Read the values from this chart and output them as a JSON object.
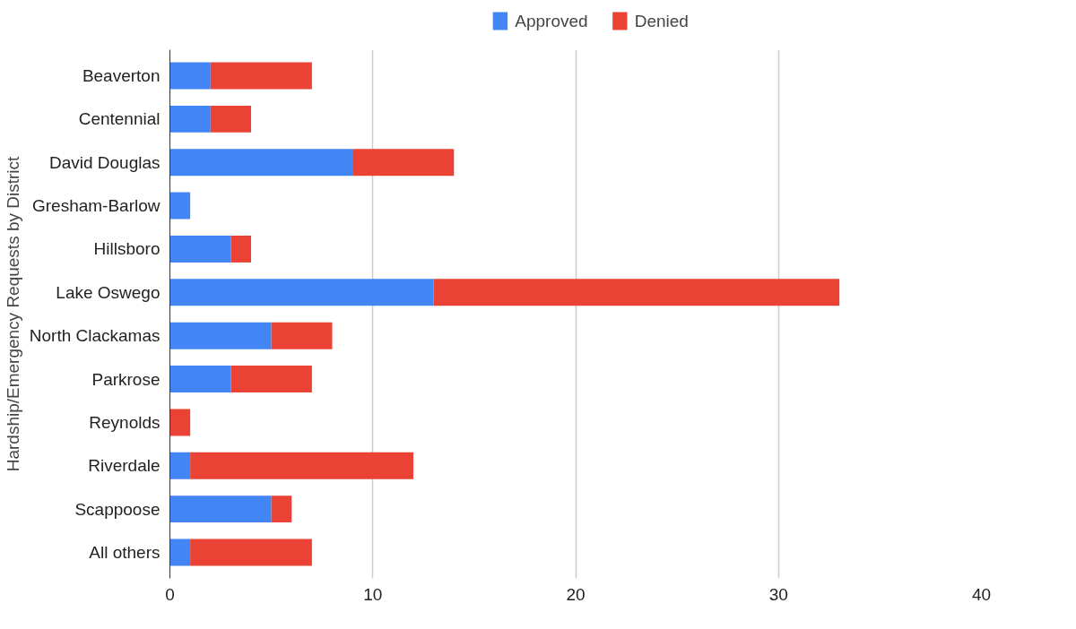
{
  "chart_data": {
    "type": "bar",
    "orientation": "horizontal",
    "stacked": true,
    "ylabel": "Hardship/Emergency Requests by District",
    "categories": [
      "Beaverton",
      "Centennial",
      "David Douglas",
      "Gresham-Barlow",
      "Hillsboro",
      "Lake Oswego",
      "North Clackamas",
      "Parkrose",
      "Reynolds",
      "Riverdale",
      "Scappoose",
      "All others"
    ],
    "series": [
      {
        "name": "Approved",
        "color": "#4285f4",
        "values": [
          2,
          2,
          9,
          1,
          3,
          13,
          5,
          3,
          0,
          1,
          5,
          1
        ]
      },
      {
        "name": "Denied",
        "color": "#ea4335",
        "values": [
          5,
          2,
          5,
          0,
          1,
          20,
          3,
          4,
          1,
          11,
          1,
          6
        ]
      }
    ],
    "xlim": [
      0,
      40
    ],
    "xticks": [
      0,
      10,
      20,
      30,
      40
    ],
    "grid": "x",
    "legend": "top"
  }
}
